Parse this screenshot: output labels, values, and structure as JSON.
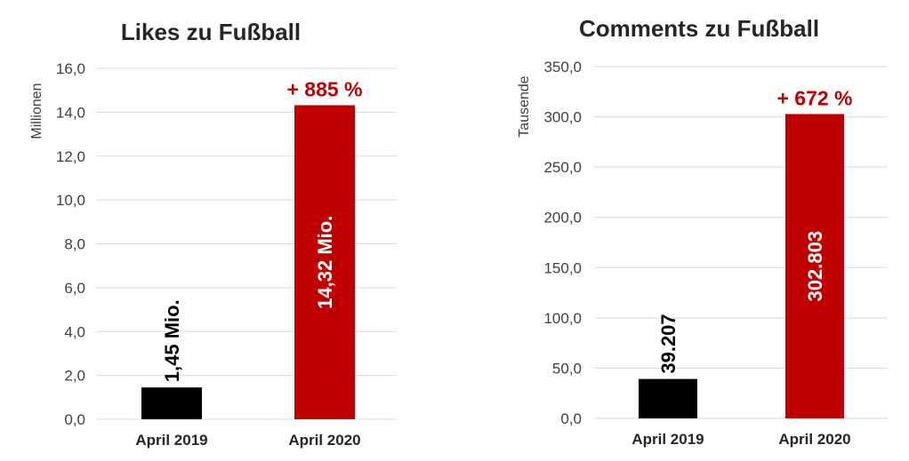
{
  "chart_data": [
    {
      "type": "bar",
      "title": "Likes zu Fußball",
      "ylabel": "Millionen",
      "ylim": [
        0,
        16
      ],
      "yticks": [
        "0,0",
        "2,0",
        "4,0",
        "6,0",
        "8,0",
        "10,0",
        "12,0",
        "14,0",
        "16,0"
      ],
      "categories": [
        "April 2019",
        "April 2020"
      ],
      "values": [
        1.45,
        14.32
      ],
      "data_labels": [
        "1,45 Mio.",
        "14,32 Mio."
      ],
      "annotation": "+ 885 %",
      "colors": [
        "#000000",
        "#c00000"
      ],
      "annotation_color": "#c00000",
      "grid": true
    },
    {
      "type": "bar",
      "title": "Comments zu Fußball",
      "ylabel": "Tausende",
      "ylim": [
        0,
        350
      ],
      "yticks": [
        "0,0",
        "50,0",
        "100,0",
        "150,0",
        "200,0",
        "250,0",
        "300,0",
        "350,0"
      ],
      "categories": [
        "April 2019",
        "April 2020"
      ],
      "values": [
        39.207,
        302.803
      ],
      "data_labels": [
        "39.207",
        "302.803"
      ],
      "annotation": "+ 672 %",
      "colors": [
        "#000000",
        "#c00000"
      ],
      "annotation_color": "#c00000",
      "grid": true
    }
  ]
}
